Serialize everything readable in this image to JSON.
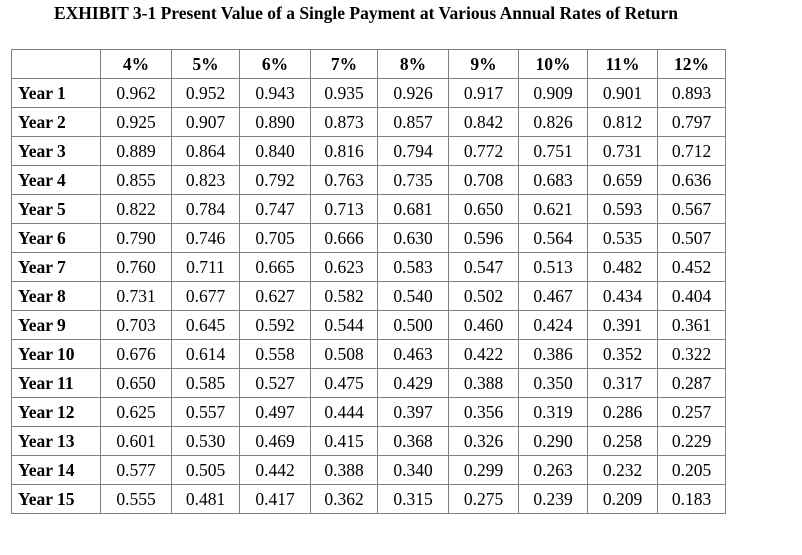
{
  "title": "EXHIBIT 3-1 Present Value of a Single Payment at Various Annual Rates of Return",
  "table": {
    "corner": "",
    "columns": [
      "4%",
      "5%",
      "6%",
      "7%",
      "8%",
      "9%",
      "10%",
      "11%",
      "12%"
    ],
    "rows": [
      {
        "label": "Year 1",
        "values": [
          "0.962",
          "0.952",
          "0.943",
          "0.935",
          "0.926",
          "0.917",
          "0.909",
          "0.901",
          "0.893"
        ]
      },
      {
        "label": "Year 2",
        "values": [
          "0.925",
          "0.907",
          "0.890",
          "0.873",
          "0.857",
          "0.842",
          "0.826",
          "0.812",
          "0.797"
        ]
      },
      {
        "label": "Year 3",
        "values": [
          "0.889",
          "0.864",
          "0.840",
          "0.816",
          "0.794",
          "0.772",
          "0.751",
          "0.731",
          "0.712"
        ]
      },
      {
        "label": "Year 4",
        "values": [
          "0.855",
          "0.823",
          "0.792",
          "0.763",
          "0.735",
          "0.708",
          "0.683",
          "0.659",
          "0.636"
        ]
      },
      {
        "label": "Year 5",
        "values": [
          "0.822",
          "0.784",
          "0.747",
          "0.713",
          "0.681",
          "0.650",
          "0.621",
          "0.593",
          "0.567"
        ]
      },
      {
        "label": "Year 6",
        "values": [
          "0.790",
          "0.746",
          "0.705",
          "0.666",
          "0.630",
          "0.596",
          "0.564",
          "0.535",
          "0.507"
        ]
      },
      {
        "label": "Year 7",
        "values": [
          "0.760",
          "0.711",
          "0.665",
          "0.623",
          "0.583",
          "0.547",
          "0.513",
          "0.482",
          "0.452"
        ]
      },
      {
        "label": "Year 8",
        "values": [
          "0.731",
          "0.677",
          "0.627",
          "0.582",
          "0.540",
          "0.502",
          "0.467",
          "0.434",
          "0.404"
        ]
      },
      {
        "label": "Year 9",
        "values": [
          "0.703",
          "0.645",
          "0.592",
          "0.544",
          "0.500",
          "0.460",
          "0.424",
          "0.391",
          "0.361"
        ]
      },
      {
        "label": "Year 10",
        "values": [
          "0.676",
          "0.614",
          "0.558",
          "0.508",
          "0.463",
          "0.422",
          "0.386",
          "0.352",
          "0.322"
        ]
      },
      {
        "label": "Year 11",
        "values": [
          "0.650",
          "0.585",
          "0.527",
          "0.475",
          "0.429",
          "0.388",
          "0.350",
          "0.317",
          "0.287"
        ]
      },
      {
        "label": "Year 12",
        "values": [
          "0.625",
          "0.557",
          "0.497",
          "0.444",
          "0.397",
          "0.356",
          "0.319",
          "0.286",
          "0.257"
        ]
      },
      {
        "label": "Year 13",
        "values": [
          "0.601",
          "0.530",
          "0.469",
          "0.415",
          "0.368",
          "0.326",
          "0.290",
          "0.258",
          "0.229"
        ]
      },
      {
        "label": "Year 14",
        "values": [
          "0.577",
          "0.505",
          "0.442",
          "0.388",
          "0.340",
          "0.299",
          "0.263",
          "0.232",
          "0.205"
        ]
      },
      {
        "label": "Year 15",
        "values": [
          "0.555",
          "0.481",
          "0.417",
          "0.362",
          "0.315",
          "0.275",
          "0.239",
          "0.209",
          "0.183"
        ]
      }
    ]
  }
}
